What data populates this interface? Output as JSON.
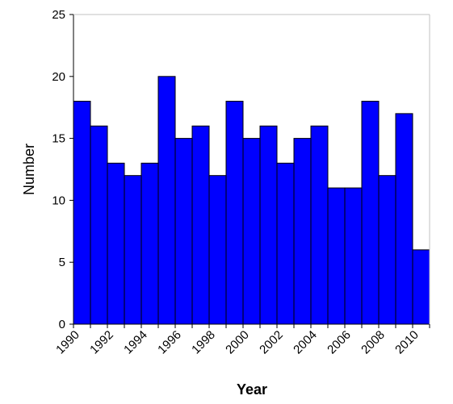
{
  "chart_data": {
    "type": "bar",
    "title": "",
    "xlabel": "Year",
    "ylabel": "Number",
    "categories": [
      "1990",
      "1991",
      "1992",
      "1993",
      "1994",
      "1995",
      "1996",
      "1997",
      "1998",
      "1999",
      "2000",
      "2001",
      "2002",
      "2003",
      "2004",
      "2005",
      "2006",
      "2007",
      "2008",
      "2009",
      "2010"
    ],
    "values": [
      18,
      16,
      13,
      12,
      13,
      20,
      15,
      16,
      12,
      18,
      15,
      16,
      13,
      15,
      16,
      11,
      11,
      18,
      12,
      17,
      6
    ],
    "x_tick_labels": [
      "1990",
      "1992",
      "1994",
      "1996",
      "1998",
      "2000",
      "2002",
      "2004",
      "2006",
      "2008",
      "2010"
    ],
    "y_ticks": [
      "0",
      "5",
      "10",
      "15",
      "20",
      "25"
    ],
    "ylim": [
      0,
      25
    ],
    "grid": false,
    "bar_color": "#0000FF",
    "bar_edge_color": "#000000"
  }
}
